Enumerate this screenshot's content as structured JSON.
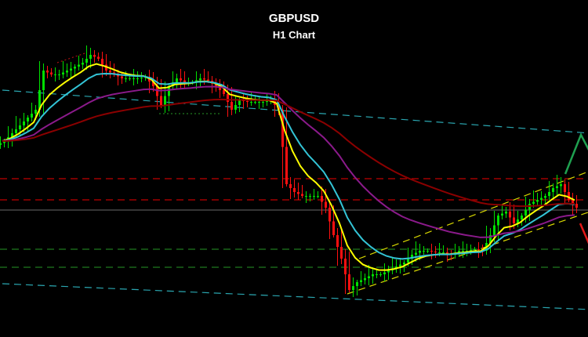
{
  "chart_data": {
    "type": "candlestick",
    "title": "GBPUSD",
    "subtitle": "H1 Chart",
    "xlabel": "",
    "ylabel": "",
    "ylim": [
      0,
      430
    ],
    "grid": false,
    "background": "#000000",
    "colors": {
      "up": "#00e000",
      "down": "#ff1010",
      "ma_fast": "#ffff00",
      "ma_mid": "#33c4d6",
      "ma_slow": "#8b1a8b",
      "ma_long": "#8b0000"
    },
    "close": [
      250,
      260,
      270,
      280,
      290,
      340,
      335,
      335,
      340,
      345,
      350,
      360,
      355,
      340,
      335,
      330,
      330,
      330,
      332,
      320,
      295,
      320,
      330,
      325,
      325,
      330,
      327,
      320,
      310,
      290,
      302,
      300,
      300,
      300,
      302,
      290,
      195,
      185,
      180,
      180,
      180,
      165,
      130,
      100,
      60,
      70,
      75,
      80,
      80,
      85,
      90,
      95,
      105,
      110,
      110,
      108,
      108,
      105,
      110,
      110,
      112,
      110,
      130,
      155,
      160,
      145,
      155,
      170,
      175,
      180,
      190,
      195,
      175,
      165
    ],
    "moving_averages": [
      {
        "color": "#ffff00",
        "period": 5
      },
      {
        "color": "#33c4d6",
        "period": 9
      },
      {
        "color": "#8b1a8b",
        "period": 22
      },
      {
        "color": "#8b0000",
        "period": 45
      }
    ],
    "horizontal_levels": [
      {
        "value": 202,
        "color": "#c00000",
        "style": "dashed"
      },
      {
        "value": 175,
        "color": "#c00000",
        "style": "dashed"
      },
      {
        "value": 162,
        "color": "#555555",
        "style": "solid"
      },
      {
        "value": 112,
        "color": "#1f7a1f",
        "style": "dashed"
      },
      {
        "value": 89,
        "color": "#1f7a1f",
        "style": "dashed"
      }
    ],
    "trendlines": [
      {
        "from": [
          0,
          315
        ],
        "to": [
          75,
          260
        ],
        "color": "#2aa6b0",
        "style": "dashed"
      },
      {
        "from": [
          0,
          68
        ],
        "to": [
          75,
          35
        ],
        "color": "#2aa6b0",
        "style": "dashed"
      },
      {
        "from": [
          45.5,
          100
        ],
        "to": [
          75,
          212
        ],
        "color": "#d8d800",
        "style": "dashed"
      },
      {
        "from": [
          44,
          55
        ],
        "to": [
          75,
          160
        ],
        "color": "#d8d800",
        "style": "dashed"
      },
      {
        "from": [
          7,
          350
        ],
        "to": [
          10.5,
          362
        ],
        "color": "#a01010",
        "style": "dotted"
      },
      {
        "from": [
          20,
          285
        ],
        "to": [
          28,
          285
        ],
        "color": "#1f7a1f",
        "style": "dotted"
      }
    ],
    "arrows": [
      {
        "points": [
          [
            71.8,
            208
          ],
          [
            73.8,
            258
          ],
          [
            75,
            235
          ]
        ],
        "color": "#1fa050"
      },
      {
        "points": [
          [
            73.7,
            145
          ],
          [
            75,
            115
          ]
        ],
        "color": "#e01818"
      }
    ]
  }
}
